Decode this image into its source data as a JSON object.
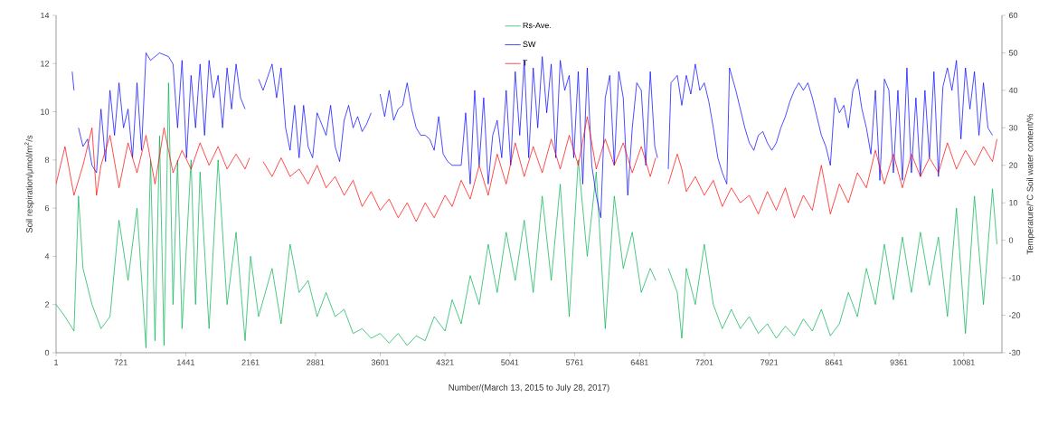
{
  "chart_data": {
    "type": "line",
    "xlabel": "Number/(March 13, 2015 to July 28, 2017)",
    "ylabel": "Soil respiration/μmol/m$^{2}$/s",
    "y2label": "Temperature/°C  Soil water content/%",
    "xlim": [
      1,
      10505
    ],
    "xticks": [
      1,
      721,
      1441,
      2161,
      2881,
      3601,
      4321,
      5041,
      5761,
      6481,
      7201,
      7921,
      8641,
      9361,
      10081
    ],
    "ylim": [
      0,
      14
    ],
    "yticks": [
      0,
      2,
      4,
      6,
      8,
      10,
      12,
      14
    ],
    "y2lim": [
      -30,
      60
    ],
    "y2ticks": [
      -30,
      -20,
      -10,
      0,
      10,
      20,
      30,
      40,
      50,
      60
    ],
    "legend": "top",
    "marker": "none",
    "line_style": "solid",
    "series": [
      {
        "name": "Rs-Ave.",
        "color": "#00b050",
        "x": [
          1,
          100,
          200,
          250,
          300,
          400,
          500,
          600,
          700,
          800,
          900,
          1000,
          1050,
          1100,
          1150,
          1200,
          1250,
          1300,
          1350,
          1400,
          1500,
          1550,
          1600,
          1700,
          1800,
          1900,
          2000,
          2100,
          2161,
          2250,
          2400,
          2500,
          2600,
          2700,
          2800,
          2900,
          3000,
          3100,
          3200,
          3300,
          3400,
          3500,
          3600,
          3700,
          3800,
          3900,
          4000,
          4100,
          4200,
          4321,
          4400,
          4500,
          4600,
          4700,
          4800,
          4900,
          5000,
          5100,
          5200,
          5300,
          5400,
          5500,
          5600,
          5700,
          5800,
          5900,
          6000,
          6100,
          6200,
          6300,
          6400,
          6500,
          6600,
          6660,
          6720,
          6800,
          6900,
          6950,
          7000,
          7100,
          7200,
          7300,
          7400,
          7500,
          7600,
          7700,
          7800,
          7900,
          8000,
          8100,
          8200,
          8300,
          8400,
          8500,
          8600,
          8700,
          8800,
          8900,
          9000,
          9100,
          9200,
          9300,
          9400,
          9500,
          9600,
          9700,
          9800,
          9900,
          10000,
          10100,
          10200,
          10300,
          10400,
          10450
        ],
        "values": [
          2.0,
          1.5,
          0.9,
          6.5,
          3.5,
          2.0,
          1.0,
          1.5,
          5.5,
          3,
          6,
          0.2,
          8,
          0.5,
          9,
          0.3,
          11.2,
          2,
          8,
          1,
          8,
          2,
          7.5,
          1,
          8,
          2,
          5,
          0.5,
          4,
          1.5,
          3.5,
          1.2,
          4.5,
          2.5,
          3,
          1.5,
          2.5,
          1.5,
          1.8,
          0.8,
          1,
          0.6,
          0.8,
          0.4,
          0.8,
          0.3,
          0.7,
          0.5,
          1.5,
          0.9,
          2.2,
          1.2,
          3.2,
          2,
          4.5,
          2.5,
          5,
          3,
          5.5,
          2.5,
          6.5,
          3,
          7,
          1.5,
          8,
          4,
          7.5,
          1,
          6.5,
          3.5,
          5,
          2.5,
          3.5,
          3,
          null,
          3.5,
          2.5,
          0.6,
          3.5,
          2,
          4.5,
          2,
          1,
          1.8,
          1,
          1.5,
          0.8,
          1.2,
          0.6,
          1.1,
          0.7,
          1.4,
          0.9,
          1.8,
          0.7,
          1.2,
          2.5,
          1.5,
          3.5,
          2,
          4.5,
          2.2,
          4.8,
          2.5,
          5,
          2.8,
          4.8,
          1.5,
          6,
          0.8,
          6.5,
          2,
          6.8,
          4.5
        ]
      },
      {
        "name": "SW",
        "color": "#0000ff",
        "axis": "y2",
        "x": [
          180,
          200,
          230,
          250,
          300,
          350,
          400,
          450,
          500,
          550,
          600,
          650,
          700,
          750,
          800,
          850,
          900,
          950,
          1000,
          1050,
          1150,
          1250,
          1300,
          1350,
          1400,
          1450,
          1500,
          1550,
          1600,
          1650,
          1700,
          1750,
          1800,
          1850,
          1900,
          1950,
          2000,
          2050,
          2100,
          2150,
          2250,
          2300,
          2400,
          2450,
          2500,
          2550,
          2600,
          2650,
          2700,
          2750,
          2800,
          2850,
          2900,
          3000,
          3050,
          3100,
          3150,
          3200,
          3250,
          3300,
          3350,
          3400,
          3450,
          3500,
          3550,
          3600,
          3650,
          3700,
          3750,
          3800,
          3850,
          3900,
          3950,
          4000,
          4050,
          4100,
          4150,
          4200,
          4250,
          4300,
          4350,
          4400,
          4450,
          4500,
          4550,
          4600,
          4650,
          4700,
          4750,
          4800,
          4850,
          4900,
          4950,
          5000,
          5050,
          5100,
          5150,
          5200,
          5250,
          5300,
          5350,
          5400,
          5450,
          5500,
          5550,
          5600,
          5650,
          5700,
          5750,
          5800,
          5850,
          5900,
          5950,
          6000,
          6050,
          6100,
          6150,
          6200,
          6250,
          6300,
          6350,
          6400,
          6450,
          6500,
          6550,
          6600,
          6650,
          6680,
          6720,
          6800,
          6830,
          6900,
          6950,
          7000,
          7050,
          7100,
          7150,
          7200,
          7250,
          7300,
          7350,
          7400,
          7450,
          7480,
          7550,
          7650,
          7700,
          7750,
          7800,
          7850,
          7900,
          7950,
          8000,
          8050,
          8100,
          8150,
          8200,
          8250,
          8300,
          8350,
          8400,
          8450,
          8500,
          8550,
          8600,
          8650,
          8700,
          8750,
          8800,
          8850,
          8900,
          8950,
          9000,
          9050,
          9100,
          9150,
          9200,
          9250,
          9300,
          9350,
          9400,
          9450,
          9500,
          9550,
          9600,
          9650,
          9700,
          9750,
          9800,
          9850,
          9900,
          9950,
          10000,
          10050,
          10100,
          10150,
          10200,
          10250,
          10300,
          10350,
          10400
        ],
        "values": [
          45,
          40,
          null,
          30,
          25,
          27,
          20,
          18,
          35,
          21,
          40,
          28,
          42,
          30,
          35,
          22,
          42,
          24,
          50,
          48,
          50,
          49,
          47,
          30,
          48,
          22,
          44,
          30,
          47,
          28,
          48,
          38,
          44,
          30,
          46,
          35,
          47,
          38,
          35,
          null,
          43,
          40,
          47,
          38,
          46,
          30,
          24,
          36,
          22,
          36,
          25,
          22,
          34,
          28,
          36,
          25,
          21,
          32,
          36,
          30,
          33,
          29,
          31,
          34,
          null,
          39,
          33,
          40,
          32,
          35,
          36,
          42,
          35,
          30,
          28,
          28,
          27,
          24,
          33,
          23,
          21,
          20,
          20,
          20,
          34,
          15,
          40,
          20,
          38,
          15,
          28,
          32,
          22,
          40,
          20,
          45,
          28,
          48,
          22,
          46,
          30,
          49,
          34,
          47,
          22,
          48,
          40,
          44,
          22,
          45,
          15,
          46,
          20,
          12,
          6,
          38,
          44,
          20,
          45,
          38,
          12,
          30,
          42,
          40,
          20,
          45,
          25,
          22,
          null,
          19,
          42,
          44,
          36,
          44,
          39,
          47,
          40,
          42,
          37,
          30,
          22,
          18,
          15,
          46,
          40,
          30,
          26,
          24,
          28,
          29,
          26,
          24,
          26,
          30,
          33,
          37,
          40,
          42,
          40,
          42,
          38,
          33,
          28,
          25,
          20,
          38,
          34,
          36,
          30,
          40,
          43,
          35,
          30,
          23,
          40,
          16,
          43,
          40,
          18,
          40,
          16,
          46,
          18,
          38,
          17,
          40,
          22,
          45,
          17,
          41,
          46,
          40,
          48,
          27,
          46,
          35,
          45,
          28,
          42,
          30,
          28
        ]
      },
      {
        "name": "T",
        "color": "#ff0000",
        "axis": "y2",
        "x": [
          1,
          100,
          200,
          300,
          400,
          450,
          500,
          600,
          700,
          800,
          900,
          1000,
          1100,
          1200,
          1300,
          1400,
          1500,
          1600,
          1700,
          1800,
          1900,
          2000,
          2100,
          2150,
          2220,
          2300,
          2400,
          2500,
          2600,
          2700,
          2800,
          2900,
          3000,
          3100,
          3200,
          3300,
          3400,
          3500,
          3600,
          3700,
          3800,
          3900,
          4000,
          4100,
          4200,
          4321,
          4400,
          4500,
          4600,
          4700,
          4800,
          4900,
          5000,
          5100,
          5200,
          5300,
          5400,
          5500,
          5600,
          5700,
          5800,
          5900,
          6000,
          6100,
          6200,
          6300,
          6400,
          6500,
          6600,
          6660,
          6720,
          6800,
          6900,
          6950,
          7000,
          7100,
          7200,
          7300,
          7400,
          7500,
          7600,
          7700,
          7800,
          7900,
          8000,
          8100,
          8200,
          8300,
          8400,
          8500,
          8600,
          8700,
          8800,
          8900,
          9000,
          9100,
          9200,
          9300,
          9400,
          9500,
          9600,
          9700,
          9800,
          9900,
          10000,
          10100,
          10200,
          10300,
          10400,
          10450
        ],
        "values": [
          15,
          25,
          12,
          20,
          30,
          12,
          20,
          28,
          14,
          26,
          18,
          28,
          15,
          30,
          18,
          24,
          19,
          26,
          20,
          25,
          19,
          23,
          19,
          22,
          null,
          21,
          17,
          22,
          17,
          19,
          15,
          20,
          14,
          17,
          12,
          16,
          9,
          13,
          8,
          11,
          6,
          10,
          5,
          10,
          6,
          12,
          9,
          16,
          11,
          20,
          12,
          23,
          15,
          26,
          17,
          25,
          18,
          27,
          19,
          28,
          20,
          33,
          19,
          27,
          20,
          26,
          18,
          25,
          17,
          22,
          null,
          15,
          23,
          19,
          13,
          17,
          12,
          16,
          9,
          14,
          10,
          12,
          7,
          13,
          8,
          14,
          6,
          12,
          8,
          20,
          7,
          15,
          10,
          18,
          14,
          24,
          15,
          23,
          14,
          23,
          17,
          22,
          18,
          26,
          19,
          24,
          20,
          25,
          21,
          27
        ]
      }
    ]
  }
}
